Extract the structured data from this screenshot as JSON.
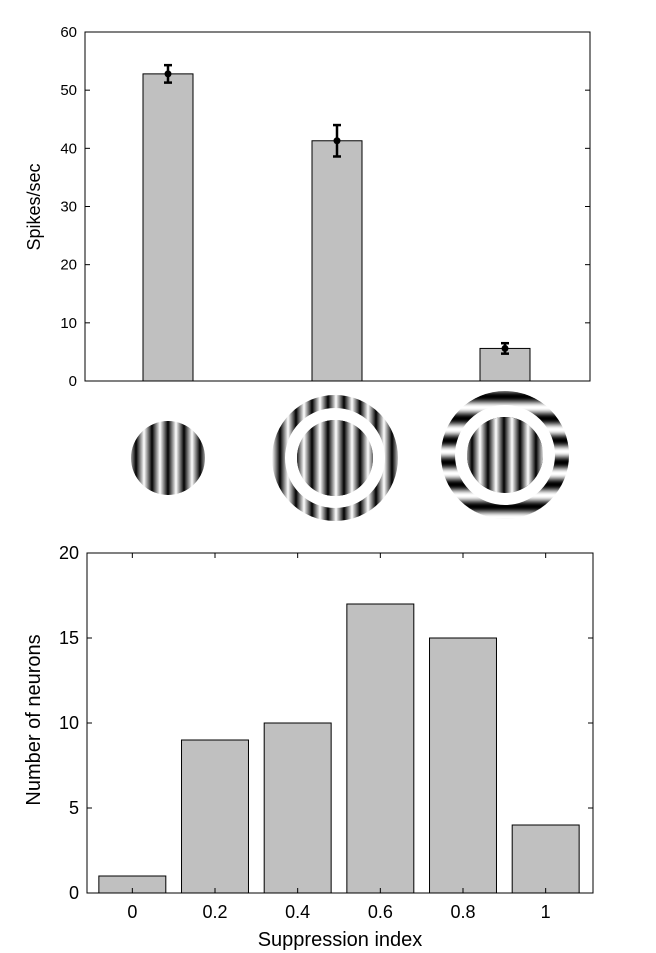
{
  "chart_data": [
    {
      "type": "bar",
      "categories": [
        "center grating",
        "center + parallel surround",
        "center + orthogonal surround"
      ],
      "values": [
        52.8,
        41.3,
        5.6
      ],
      "errors": [
        1.5,
        2.7,
        0.9
      ],
      "ylabel": "Spikes/sec",
      "xlabel": "",
      "ylim": [
        0,
        60
      ],
      "yticks": [
        0,
        10,
        20,
        30,
        40,
        50,
        60
      ],
      "bar_color": "#c0c0c0",
      "grid": false
    },
    {
      "type": "bar",
      "categories": [
        "0",
        "0.2",
        "0.4",
        "0.6",
        "0.8",
        "1"
      ],
      "values": [
        1,
        9,
        10,
        17,
        15,
        4
      ],
      "xlabel": "Suppression index",
      "ylabel": "Number of neurons",
      "ylim": [
        0,
        20
      ],
      "yticks": [
        0,
        5,
        10,
        15,
        20
      ],
      "bar_color": "#c0c0c0",
      "grid": false
    }
  ],
  "stimuli": [
    {
      "name": "center-only-grating-icon"
    },
    {
      "name": "center-parallel-surround-grating-icon"
    },
    {
      "name": "center-orthogonal-surround-grating-icon"
    }
  ]
}
